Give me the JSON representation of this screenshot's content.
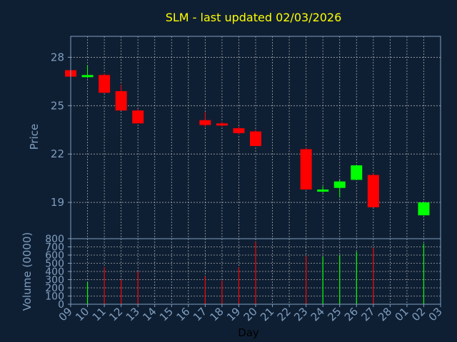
{
  "colors": {
    "background": "#0f1f33",
    "text": "#7f9fbf",
    "title": "#ffff00",
    "up": "#00ff00",
    "down": "#ff0000",
    "grid": "#c8c8c8"
  },
  "chart_data": {
    "type": "candlestick",
    "title": "SLM - last updated 02/03/2026",
    "ylabel": "Price",
    "volume_ylabel": "Volume (0000)",
    "xlabel": "Day",
    "ylim": [
      16.75,
      29.3
    ],
    "volume_ylim": [
      0,
      800
    ],
    "yticks": [
      "19",
      "22",
      "25",
      "28"
    ],
    "volume_yticks": [
      "0",
      "100",
      "200",
      "300",
      "400",
      "500",
      "600",
      "700",
      "800"
    ],
    "x_ticks": [
      "09",
      "10",
      "11",
      "12",
      "13",
      "14",
      "15",
      "16",
      "17",
      "18",
      "19",
      "20",
      "21",
      "22",
      "23",
      "24",
      "25",
      "26",
      "27",
      "28",
      "01",
      "02",
      "03"
    ],
    "grid": true,
    "candles": [
      {
        "x": 0,
        "open": 27.2,
        "high": 27.2,
        "low": 26.8,
        "close": 26.8,
        "volume": 0
      },
      {
        "x": 1,
        "open": 26.8,
        "high": 27.5,
        "low": 26.7,
        "close": 26.9,
        "volume": 270
      },
      {
        "x": 2,
        "open": 26.9,
        "high": 27.0,
        "low": 25.8,
        "close": 25.8,
        "volume": 450
      },
      {
        "x": 3,
        "open": 25.9,
        "high": 26.3,
        "low": 24.7,
        "close": 24.7,
        "volume": 300
      },
      {
        "x": 4,
        "open": 24.7,
        "high": 24.8,
        "low": 23.9,
        "close": 23.9,
        "volume": 400
      },
      {
        "x": 8,
        "open": 24.1,
        "high": 24.6,
        "low": 23.7,
        "close": 23.8,
        "volume": 340
      },
      {
        "x": 9,
        "open": 23.9,
        "high": 24.0,
        "low": 23.7,
        "close": 23.8,
        "volume": 290
      },
      {
        "x": 10,
        "open": 23.6,
        "high": 23.7,
        "low": 23.2,
        "close": 23.3,
        "volume": 450
      },
      {
        "x": 11,
        "open": 23.4,
        "high": 23.5,
        "low": 22.5,
        "close": 22.5,
        "volume": 760
      },
      {
        "x": 14,
        "open": 22.3,
        "high": 22.4,
        "low": 19.8,
        "close": 19.8,
        "volume": 590
      },
      {
        "x": 15,
        "open": 19.7,
        "high": 20.0,
        "low": 19.6,
        "close": 19.8,
        "volume": 580
      },
      {
        "x": 16,
        "open": 19.9,
        "high": 20.4,
        "low": 19.3,
        "close": 20.3,
        "volume": 600
      },
      {
        "x": 17,
        "open": 20.4,
        "high": 21.3,
        "low": 20.4,
        "close": 21.3,
        "volume": 640
      },
      {
        "x": 18,
        "open": 20.7,
        "high": 20.8,
        "low": 18.7,
        "close": 18.7,
        "volume": 690
      },
      {
        "x": 21,
        "open": 18.2,
        "high": 19.0,
        "low": 18.2,
        "close": 19.0,
        "volume": 740
      }
    ]
  }
}
